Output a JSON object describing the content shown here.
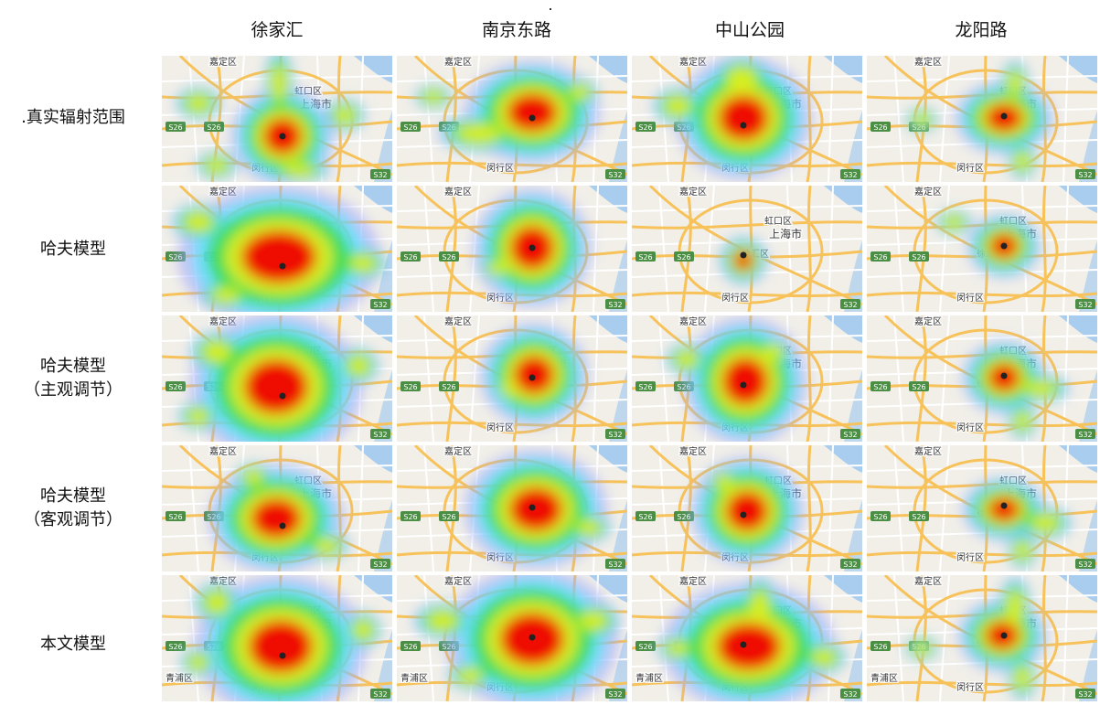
{
  "columns": [
    "徐家汇",
    "南京东路",
    "中山公园",
    "龙阳路"
  ],
  "rows": [
    {
      "line1": ".真实辐射范围",
      "line2": ""
    },
    {
      "line1": "哈夫模型",
      "line2": ""
    },
    {
      "line1": "哈夫模型",
      "line2": "（主观调节）"
    },
    {
      "line1": "哈夫模型",
      "line2": "（客观调节）"
    },
    {
      "line1": "本文模型",
      "line2": ""
    }
  ],
  "map_labels": {
    "jiading": "嘉定区",
    "hongkou": "虹口区",
    "shanghai": "上海市",
    "xuhui": "徐汇区",
    "minhang": "闵行区",
    "qingpu": "青浦区",
    "s26": "S26",
    "s32": "S32"
  },
  "heatmap_colors": {
    "outer": "#9aa0ff",
    "cyan": "#55e6ff",
    "green": "#33dd44",
    "yellow": "#ddee22",
    "red": "#ee1100",
    "center_point": "#222222"
  },
  "map_colors": {
    "land": "#f1efe8",
    "water": "#a9cdee",
    "road": "#f7c25a",
    "minor_road": "#ffffff",
    "shield": "#4a8f44"
  }
}
